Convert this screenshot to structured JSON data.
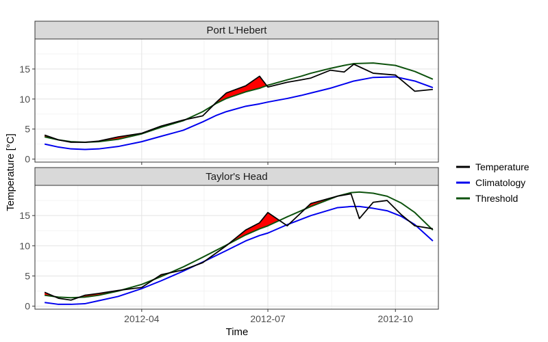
{
  "chart_data": {
    "type": "line",
    "xlabel": "Time",
    "ylabel": "Temperature [°C]",
    "x_ticks": [
      "2012-04",
      "2012-07",
      "2012-10"
    ],
    "y_ticks": [
      "0",
      "5",
      "10",
      "15"
    ],
    "x_range": [
      "2012-01-15",
      "2012-11-01"
    ],
    "ylim": [
      -0.5,
      20
    ],
    "grid": true,
    "legend_position": "right",
    "legend": [
      {
        "name": "Temperature",
        "color": "#000000"
      },
      {
        "name": "Climatology",
        "color": "#0000ee"
      },
      {
        "name": "Threshold",
        "color": "#0d520d"
      }
    ],
    "exceedance_fill_color": "#ff0000",
    "panels": [
      {
        "name": "Port L'Hebert",
        "x": [
          "2012-01-22",
          "2012-02-01",
          "2012-02-10",
          "2012-02-20",
          "2012-03-01",
          "2012-03-15",
          "2012-04-01",
          "2012-04-15",
          "2012-05-01",
          "2012-05-15",
          "2012-05-25",
          "2012-06-01",
          "2012-06-15",
          "2012-06-25",
          "2012-07-01",
          "2012-07-15",
          "2012-07-25",
          "2012-08-01",
          "2012-08-15",
          "2012-08-25",
          "2012-09-01",
          "2012-09-15",
          "2012-10-01",
          "2012-10-15",
          "2012-10-28"
        ],
        "temperature": [
          4.0,
          3.2,
          2.8,
          2.8,
          3.0,
          3.7,
          4.3,
          5.5,
          6.5,
          7.2,
          9.5,
          11.0,
          12.2,
          13.8,
          12.0,
          12.8,
          13.2,
          13.5,
          14.8,
          14.5,
          15.8,
          14.3,
          14.0,
          11.3,
          11.6
        ],
        "climatology": [
          2.5,
          2.0,
          1.7,
          1.6,
          1.7,
          2.1,
          2.9,
          3.8,
          4.8,
          6.2,
          7.3,
          7.9,
          8.8,
          9.2,
          9.5,
          10.1,
          10.6,
          11.0,
          11.8,
          12.5,
          13.0,
          13.6,
          13.7,
          13.0,
          11.9
        ],
        "threshold": [
          3.7,
          3.2,
          2.9,
          2.8,
          2.9,
          3.3,
          4.2,
          5.3,
          6.4,
          7.9,
          9.3,
          10.1,
          11.2,
          11.8,
          12.3,
          13.2,
          13.8,
          14.3,
          15.1,
          15.6,
          15.9,
          16.0,
          15.6,
          14.6,
          13.3
        ]
      },
      {
        "name": "Taylor's Head",
        "x": [
          "2012-01-22",
          "2012-02-01",
          "2012-02-10",
          "2012-02-20",
          "2012-03-01",
          "2012-03-15",
          "2012-04-01",
          "2012-04-15",
          "2012-05-01",
          "2012-05-15",
          "2012-06-01",
          "2012-06-15",
          "2012-06-25",
          "2012-07-01",
          "2012-07-15",
          "2012-08-01",
          "2012-08-20",
          "2012-08-30",
          "2012-09-05",
          "2012-09-15",
          "2012-09-25",
          "2012-10-05",
          "2012-10-15",
          "2012-10-28"
        ],
        "temperature": [
          2.3,
          1.3,
          1.0,
          1.8,
          2.1,
          2.6,
          3.1,
          5.2,
          6.0,
          7.2,
          10.0,
          12.6,
          13.8,
          15.5,
          13.3,
          17.0,
          18.2,
          18.6,
          14.5,
          17.2,
          17.5,
          15.2,
          13.3,
          12.8
        ],
        "climatology": [
          0.6,
          0.3,
          0.3,
          0.4,
          0.9,
          1.6,
          2.9,
          4.2,
          5.8,
          7.3,
          9.2,
          10.8,
          11.7,
          12.1,
          13.5,
          15.0,
          16.3,
          16.5,
          16.5,
          16.2,
          15.8,
          14.9,
          13.5,
          10.8
        ],
        "threshold": [
          1.8,
          1.5,
          1.4,
          1.5,
          1.8,
          2.5,
          3.6,
          4.9,
          6.5,
          8.1,
          10.1,
          11.8,
          12.8,
          13.3,
          14.8,
          16.5,
          18.2,
          18.8,
          18.9,
          18.7,
          18.2,
          17.1,
          15.5,
          12.6
        ]
      }
    ]
  }
}
